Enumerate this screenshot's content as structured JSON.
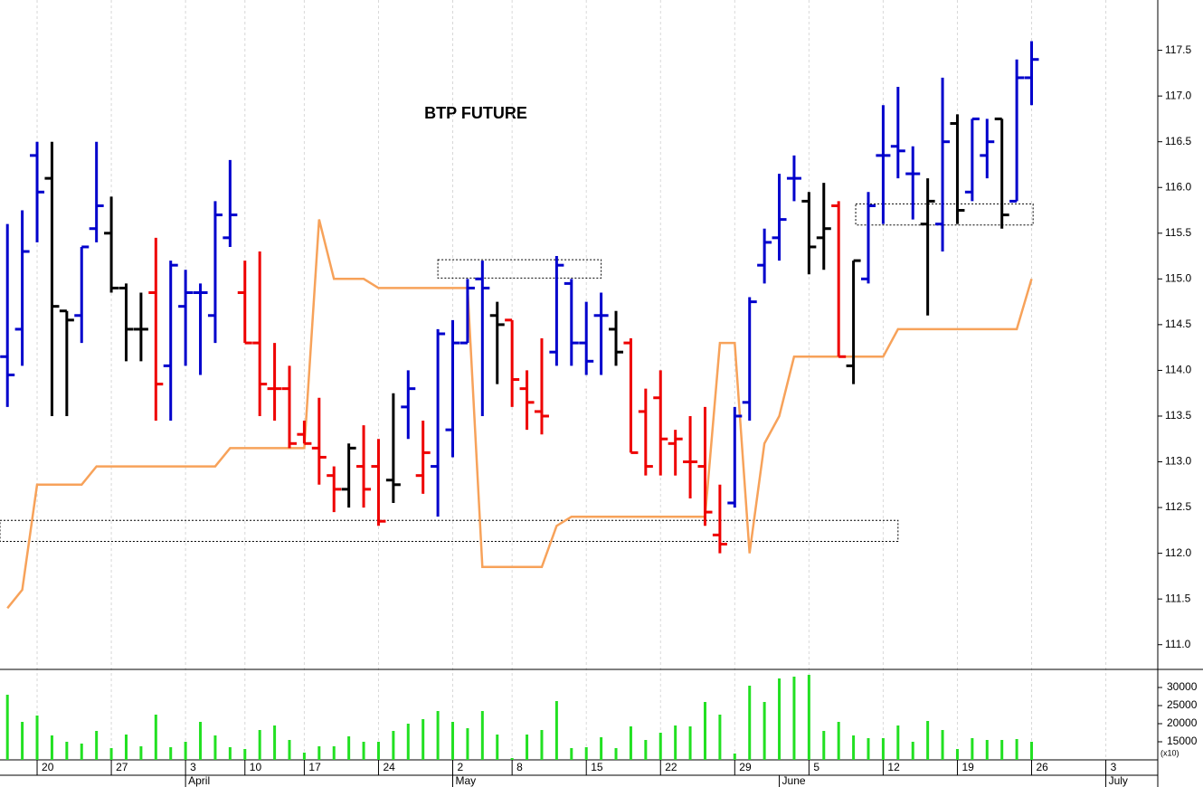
{
  "chart_data": [
    {
      "type": "ohlc",
      "title": "BTP FUTURE",
      "x": [
        0,
        1,
        2,
        3,
        4,
        5,
        6,
        7,
        8,
        9,
        10,
        11,
        12,
        13,
        14,
        15,
        16,
        17,
        18,
        19,
        20,
        21,
        22,
        23,
        24,
        25,
        26,
        27,
        28,
        29,
        30,
        31,
        32,
        33,
        34,
        35,
        36,
        37,
        38,
        39,
        40,
        41,
        42,
        43,
        44,
        45,
        46,
        47,
        48,
        49,
        50,
        51,
        52,
        53,
        54,
        55,
        56,
        57,
        58,
        59,
        60,
        61,
        62,
        63,
        64,
        65,
        66,
        67,
        68,
        69
      ],
      "open": [
        114.15,
        114.45,
        116.35,
        116.1,
        114.65,
        114.6,
        115.55,
        115.5,
        114.9,
        114.45,
        114.85,
        114.05,
        114.7,
        114.85,
        114.6,
        115.45,
        114.85,
        114.3,
        113.8,
        113.8,
        113.3,
        113.15,
        112.85,
        112.7,
        112.95,
        112.95,
        112.8,
        113.6,
        112.85,
        112.95,
        113.35,
        114.3,
        115.0,
        114.6,
        114.55,
        113.8,
        113.55,
        114.2,
        114.95,
        114.3,
        114.6,
        114.45,
        114.3,
        113.55,
        113.7,
        113.2,
        113.0,
        112.95,
        112.2,
        112.55,
        113.65,
        115.15,
        115.45,
        116.1,
        115.85,
        115.45,
        115.8,
        114.05,
        115.0,
        116.35,
        116.45,
        116.15,
        115.6,
        115.6,
        116.7,
        115.95,
        116.35,
        116.75,
        115.85,
        117.2
      ],
      "high": [
        115.6,
        115.75,
        116.5,
        116.5,
        114.65,
        115.35,
        116.5,
        115.9,
        114.95,
        114.85,
        115.45,
        115.2,
        115.1,
        114.95,
        115.85,
        116.3,
        115.2,
        115.3,
        114.3,
        114.05,
        113.45,
        113.7,
        112.95,
        113.2,
        113.4,
        113.25,
        113.75,
        114.0,
        113.45,
        114.45,
        114.55,
        115.0,
        115.2,
        114.75,
        114.55,
        114.0,
        114.35,
        115.25,
        115.0,
        114.75,
        114.85,
        114.65,
        114.35,
        113.8,
        114.0,
        113.35,
        113.5,
        113.6,
        112.75,
        113.6,
        114.8,
        115.55,
        116.15,
        116.35,
        115.95,
        116.05,
        115.85,
        115.2,
        115.95,
        116.9,
        117.1,
        116.45,
        116.1,
        117.2,
        116.8,
        116.75,
        116.75,
        116.75,
        117.4,
        117.6
      ],
      "low": [
        113.6,
        114.05,
        115.4,
        113.5,
        113.5,
        114.3,
        115.4,
        114.85,
        114.1,
        114.1,
        113.45,
        113.45,
        114.05,
        113.95,
        114.3,
        115.35,
        114.3,
        113.5,
        113.45,
        113.15,
        113.2,
        112.75,
        112.45,
        112.5,
        112.5,
        112.3,
        112.55,
        113.25,
        112.65,
        112.4,
        113.05,
        114.3,
        113.5,
        113.85,
        113.6,
        113.35,
        113.3,
        114.05,
        114.05,
        113.95,
        113.95,
        114.05,
        113.1,
        112.85,
        112.85,
        112.85,
        112.6,
        112.3,
        112.0,
        112.5,
        113.45,
        114.95,
        115.2,
        115.85,
        115.05,
        115.1,
        114.15,
        113.85,
        114.95,
        115.6,
        116.1,
        115.65,
        114.6,
        115.3,
        115.6,
        115.85,
        116.1,
        115.55,
        115.85,
        116.9
      ],
      "close": [
        113.95,
        115.3,
        115.95,
        114.7,
        114.55,
        115.35,
        115.8,
        114.9,
        114.45,
        114.45,
        113.85,
        115.15,
        114.85,
        114.85,
        115.7,
        115.7,
        114.3,
        113.85,
        113.8,
        113.2,
        113.2,
        113.05,
        112.7,
        113.15,
        112.7,
        112.35,
        112.75,
        113.8,
        113.1,
        114.4,
        114.3,
        114.9,
        114.9,
        114.5,
        113.9,
        113.65,
        113.5,
        115.15,
        114.3,
        114.1,
        114.6,
        114.2,
        113.1,
        112.95,
        113.25,
        113.25,
        113.0,
        112.45,
        112.1,
        113.5,
        114.75,
        115.4,
        115.65,
        116.1,
        115.35,
        115.55,
        114.15,
        115.2,
        115.8,
        116.35,
        116.4,
        116.15,
        115.85,
        116.5,
        115.75,
        116.75,
        116.5,
        115.7,
        117.2,
        117.4
      ],
      "colors": [
        "#0000cc",
        "#0000cc",
        "#0000cc",
        "#000000",
        "#000000",
        "#0000cc",
        "#0000cc",
        "#000000",
        "#000000",
        "#000000",
        "#ee0000",
        "#0000cc",
        "#0000cc",
        "#0000cc",
        "#0000cc",
        "#0000cc",
        "#ee0000",
        "#ee0000",
        "#ee0000",
        "#ee0000",
        "#ee0000",
        "#ee0000",
        "#ee0000",
        "#000000",
        "#ee0000",
        "#ee0000",
        "#000000",
        "#0000cc",
        "#ee0000",
        "#0000cc",
        "#0000cc",
        "#0000cc",
        "#0000cc",
        "#000000",
        "#ee0000",
        "#ee0000",
        "#ee0000",
        "#0000cc",
        "#0000cc",
        "#0000cc",
        "#0000cc",
        "#000000",
        "#ee0000",
        "#ee0000",
        "#ee0000",
        "#ee0000",
        "#ee0000",
        "#ee0000",
        "#ee0000",
        "#0000cc",
        "#0000cc",
        "#0000cc",
        "#0000cc",
        "#0000cc",
        "#000000",
        "#000000",
        "#ee0000",
        "#000000",
        "#0000cc",
        "#0000cc",
        "#0000cc",
        "#0000cc",
        "#000000",
        "#0000cc",
        "#000000",
        "#0000cc",
        "#0000cc",
        "#000000",
        "#0000cc",
        "#0000cc"
      ],
      "line": {
        "color": "#f7a25a",
        "values": [
          111.4,
          111.6,
          112.75,
          112.75,
          112.75,
          112.75,
          112.95,
          112.95,
          112.95,
          112.95,
          112.95,
          112.95,
          112.95,
          112.95,
          112.95,
          113.15,
          113.15,
          113.15,
          113.15,
          113.15,
          113.15,
          115.65,
          115.0,
          115.0,
          115.0,
          114.9,
          114.9,
          114.9,
          114.9,
          114.9,
          114.9,
          114.9,
          111.85,
          111.85,
          111.85,
          111.85,
          111.85,
          112.3,
          112.4,
          112.4,
          112.4,
          112.4,
          112.4,
          112.4,
          112.4,
          112.4,
          112.4,
          112.4,
          114.3,
          114.3,
          112.0,
          113.2,
          113.5,
          114.15,
          114.15,
          114.15,
          114.15,
          114.15,
          114.15,
          114.15,
          114.45,
          114.45,
          114.45,
          114.45,
          114.45,
          114.45,
          114.45,
          114.45,
          114.45,
          115.0
        ]
      },
      "boxes": [
        {
          "xlim": [
            29,
            40
          ],
          "ylim": [
            115.01,
            115.21
          ]
        },
        {
          "xlim": [
            -0.5,
            60
          ],
          "ylim": [
            112.13,
            112.36
          ]
        },
        {
          "xlim": [
            57.15,
            69.1
          ],
          "ylim": [
            115.59,
            115.82
          ]
        }
      ],
      "xlim": [
        -0.5,
        77.5
      ],
      "ylim": [
        110.73,
        118.05
      ],
      "yticks": [
        {
          "value": 111,
          "label": "111.0"
        },
        {
          "value": 111.5,
          "label": "111.5"
        },
        {
          "value": 112,
          "label": "112.0"
        },
        {
          "value": 112.5,
          "label": "112.5"
        },
        {
          "value": 113,
          "label": "113.0"
        },
        {
          "value": 113.5,
          "label": "113.5"
        },
        {
          "value": 114,
          "label": "114.0"
        },
        {
          "value": 114.5,
          "label": "114.5"
        },
        {
          "value": 115,
          "label": "115.0"
        },
        {
          "value": 115.5,
          "label": "115.5"
        },
        {
          "value": 116,
          "label": "116.0"
        },
        {
          "value": 116.5,
          "label": "116.5"
        },
        {
          "value": 117,
          "label": "117.0"
        },
        {
          "value": 117.5,
          "label": "117.5"
        }
      ],
      "xticks": [
        {
          "value": 2,
          "label": "20"
        },
        {
          "value": 7,
          "label": "27"
        },
        {
          "value": 12,
          "label": "3"
        },
        {
          "value": 16,
          "label": "10"
        },
        {
          "value": 20,
          "label": "17"
        },
        {
          "value": 25,
          "label": "24"
        },
        {
          "value": 30,
          "label": "2"
        },
        {
          "value": 34,
          "label": "8"
        },
        {
          "value": 39,
          "label": "15"
        },
        {
          "value": 44,
          "label": "22"
        },
        {
          "value": 49,
          "label": "29"
        },
        {
          "value": 54,
          "label": "5"
        },
        {
          "value": 59,
          "label": "12"
        },
        {
          "value": 64,
          "label": "19"
        },
        {
          "value": 69,
          "label": "26"
        },
        {
          "value": 74,
          "label": "3"
        }
      ],
      "month_ticks": [
        {
          "value": 12,
          "label": "April"
        },
        {
          "value": 30,
          "label": "May"
        },
        {
          "value": 52,
          "label": "June"
        },
        {
          "value": 74,
          "label": "July"
        }
      ],
      "grid": "x"
    },
    {
      "type": "bar",
      "color": "#22e022",
      "unit_label": "(x10)",
      "x": [
        0,
        1,
        2,
        3,
        4,
        5,
        6,
        7,
        8,
        9,
        10,
        11,
        12,
        13,
        14,
        15,
        16,
        17,
        18,
        19,
        20,
        21,
        22,
        23,
        24,
        25,
        26,
        27,
        28,
        29,
        30,
        31,
        32,
        33,
        34,
        35,
        36,
        37,
        38,
        39,
        40,
        41,
        42,
        43,
        44,
        45,
        46,
        47,
        48,
        49,
        50,
        51,
        52,
        53,
        54,
        55,
        56,
        57,
        58,
        59,
        60,
        61,
        62,
        63,
        64,
        65,
        66,
        67,
        68,
        69
      ],
      "values": [
        28000,
        20500,
        22250,
        16750,
        15000,
        14500,
        18000,
        13250,
        17000,
        13750,
        22500,
        13500,
        15000,
        20500,
        16750,
        13500,
        13000,
        18250,
        19500,
        15500,
        12000,
        13750,
        13750,
        16500,
        15000,
        15000,
        18000,
        20000,
        21250,
        23500,
        20500,
        18750,
        23500,
        17000,
        10500,
        17000,
        18250,
        26250,
        13250,
        13500,
        16250,
        13250,
        19250,
        15500,
        17500,
        19500,
        19250,
        26000,
        22500,
        11750,
        30500,
        26000,
        32500,
        33000,
        33500,
        18000,
        20500,
        16750,
        16000,
        16000,
        19500,
        15000,
        20750,
        18250,
        13000,
        16000,
        15500,
        15500,
        15750,
        15000
      ],
      "xlim": [
        -0.5,
        77.5
      ],
      "ylim": [
        10000,
        35000
      ],
      "yticks": [
        15000,
        20000,
        25000,
        30000
      ]
    }
  ]
}
